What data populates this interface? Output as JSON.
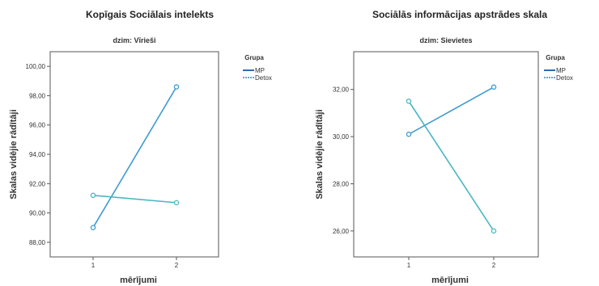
{
  "chart_data": [
    {
      "type": "line",
      "title": "Kopīgais Sociālais intelekts",
      "subtitle": "dzim: Vīrieši",
      "xlabel": "mērījumi",
      "ylabel": "Skalas vidējie rādītāji",
      "categories": [
        "1",
        "2"
      ],
      "ylim": [
        87,
        101
      ],
      "yticks": [
        "88,00",
        "90,00",
        "92,00",
        "94,00",
        "96,00",
        "98,00",
        "100,00"
      ],
      "ytick_values": [
        88,
        90,
        92,
        94,
        96,
        98,
        100
      ],
      "grid": false,
      "legend": {
        "title": "Grupa",
        "placement": "right"
      },
      "series": [
        {
          "name": "MP",
          "values": [
            89.0,
            98.6
          ],
          "color": "#3d9ad1"
        },
        {
          "name": "Detox",
          "values": [
            91.2,
            90.7
          ],
          "color": "#4ab6c4"
        }
      ]
    },
    {
      "type": "line",
      "title": "Sociālās informācijas apstrādes skala",
      "subtitle": "dzim: Sievietes",
      "xlabel": "mērījumi",
      "ylabel": "Skalas vidējie rādītāji",
      "categories": [
        "1",
        "2"
      ],
      "ylim": [
        24.9,
        33.6
      ],
      "yticks": [
        "26,00",
        "28,00",
        "30,00",
        "32,00"
      ],
      "ytick_values": [
        26,
        28,
        30,
        32
      ],
      "grid": false,
      "legend": {
        "title": "Grupa",
        "placement": "right"
      },
      "series": [
        {
          "name": "MP",
          "values": [
            30.1,
            32.1
          ],
          "color": "#3d9ad1"
        },
        {
          "name": "Detox",
          "values": [
            31.5,
            26.0
          ],
          "color": "#4ab6c4"
        }
      ]
    }
  ]
}
